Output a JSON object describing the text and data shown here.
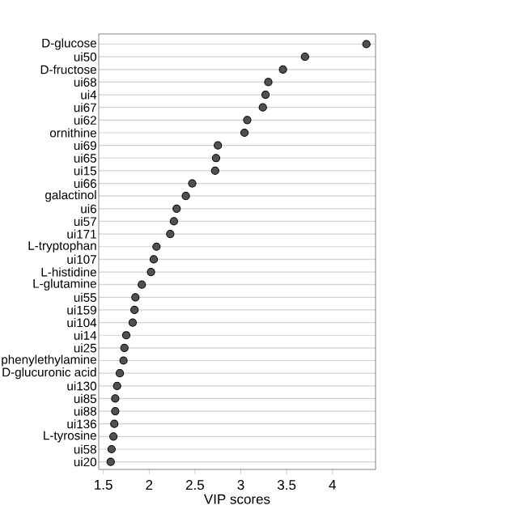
{
  "chart_data": {
    "type": "scatter",
    "orientation": "horizontal",
    "xlabel": "VIP scores",
    "categories": [
      "D-glucose",
      "ui50",
      "D-fructose",
      "ui68",
      "ui4",
      "ui67",
      "ui62",
      "ornithine",
      "ui69",
      "ui65",
      "ui15",
      "ui66",
      "galactinol",
      "ui6",
      "ui57",
      "ui171",
      "L-tryptophan",
      "ui107",
      "L-histidine",
      "L-glutamine",
      "ui55",
      "ui159",
      "ui104",
      "ui14",
      "ui25",
      "phenylethylamine",
      "D-glucuronic acid",
      "ui130",
      "ui85",
      "ui88",
      "ui136",
      "L-tyrosine",
      "ui58",
      "ui20"
    ],
    "values": [
      4.37,
      3.7,
      3.46,
      3.3,
      3.27,
      3.24,
      3.07,
      3.04,
      2.75,
      2.73,
      2.72,
      2.47,
      2.4,
      2.3,
      2.27,
      2.23,
      2.08,
      2.05,
      2.02,
      1.92,
      1.85,
      1.84,
      1.82,
      1.75,
      1.73,
      1.72,
      1.68,
      1.65,
      1.63,
      1.63,
      1.62,
      1.61,
      1.59,
      1.58
    ],
    "color": "#505050",
    "grid": "y",
    "xlim": [
      1.45,
      4.47
    ],
    "xticks": [
      1.5,
      2,
      2.5,
      3,
      3.5,
      4
    ]
  }
}
